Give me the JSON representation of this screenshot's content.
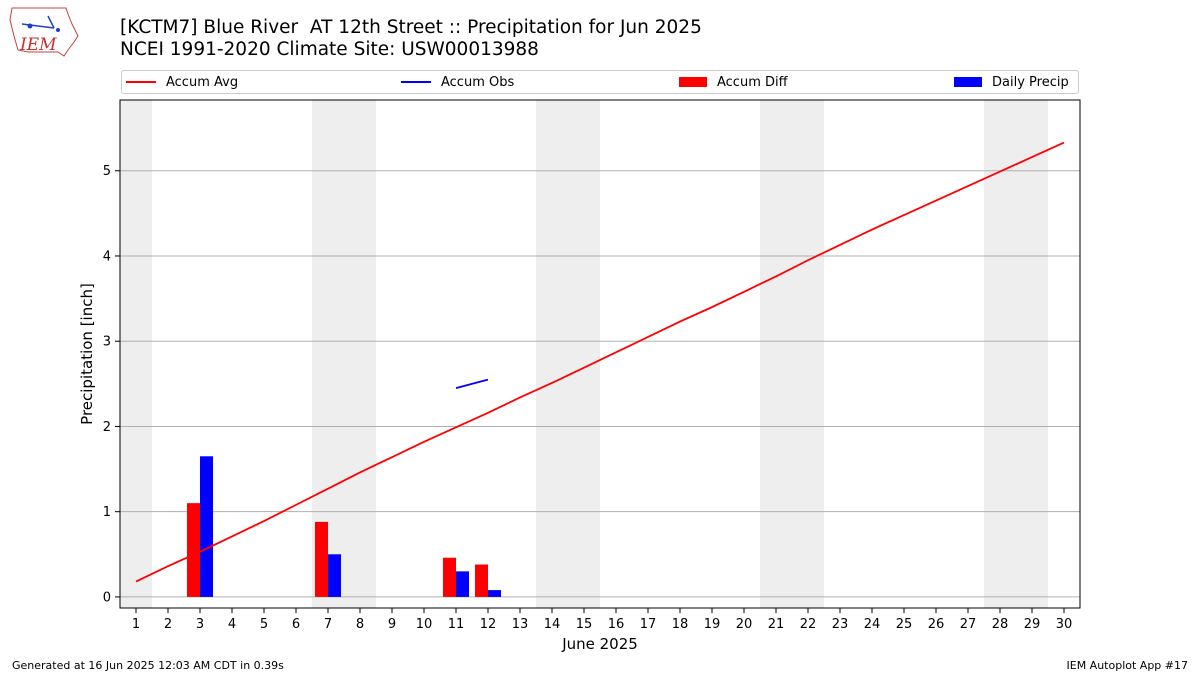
{
  "header": {
    "logo_text": "IEM",
    "title": "[KCTM7] Blue River  AT 12th Street :: Precipitation for Jun 2025",
    "subtitle": "NCEI 1991-2020 Climate Site: USW00013988"
  },
  "legend": {
    "items": [
      {
        "label": "Accum Avg",
        "kind": "line",
        "color": "#ff0000"
      },
      {
        "label": "Accum Obs",
        "kind": "line",
        "color": "#0000ff"
      },
      {
        "label": "Accum Diff",
        "kind": "box",
        "color": "#ff0000"
      },
      {
        "label": "Daily Precip",
        "kind": "box",
        "color": "#0000ff"
      }
    ]
  },
  "footer": {
    "left": "Generated at 16 Jun 2025 12:03 AM CDT in 0.39s",
    "right": "IEM Autoplot App #17"
  },
  "chart_data": {
    "type": "bar",
    "xlabel": "June 2025",
    "ylabel": "Precipitation [inch]",
    "x": [
      1,
      2,
      3,
      4,
      5,
      6,
      7,
      8,
      9,
      10,
      11,
      12,
      13,
      14,
      15,
      16,
      17,
      18,
      19,
      20,
      21,
      22,
      23,
      24,
      25,
      26,
      27,
      28,
      29,
      30
    ],
    "xlim": [
      0.5,
      30.5
    ],
    "ylim": [
      -0.13,
      5.83
    ],
    "yticks": [
      0,
      1,
      2,
      3,
      4,
      5
    ],
    "grid": "horizontal",
    "weekend_shading": [
      [
        0.5,
        1.5
      ],
      [
        6.5,
        8.5
      ],
      [
        13.5,
        15.5
      ],
      [
        20.5,
        22.5
      ],
      [
        27.5,
        29.5
      ]
    ],
    "weekend_color": "#eeeeee",
    "series": [
      {
        "name": "Accum Avg",
        "type": "line",
        "color": "#ff0000",
        "x": [
          1,
          2,
          3,
          4,
          5,
          6,
          7,
          8,
          9,
          10,
          11,
          12,
          13,
          14,
          15,
          16,
          17,
          18,
          19,
          20,
          21,
          22,
          23,
          24,
          25,
          26,
          27,
          28,
          29,
          30
        ],
        "values": [
          0.18,
          0.36,
          0.53,
          0.71,
          0.89,
          1.08,
          1.27,
          1.46,
          1.64,
          1.82,
          1.99,
          2.16,
          2.34,
          2.51,
          2.69,
          2.87,
          3.05,
          3.23,
          3.4,
          3.58,
          3.76,
          3.95,
          4.13,
          4.31,
          4.48,
          4.65,
          4.82,
          4.99,
          5.16,
          5.33
        ]
      },
      {
        "name": "Accum Obs",
        "type": "line",
        "color": "#0000ff",
        "x": [
          11,
          12
        ],
        "values": [
          2.45,
          2.55
        ]
      },
      {
        "name": "Accum Diff",
        "type": "bar",
        "color": "#ff0000",
        "x": [
          3,
          7,
          11,
          12
        ],
        "values": [
          1.1,
          0.88,
          0.46,
          0.38
        ]
      },
      {
        "name": "Daily Precip",
        "type": "bar",
        "color": "#0000ff",
        "x": [
          3,
          7,
          11,
          12
        ],
        "values": [
          1.65,
          0.5,
          0.3,
          0.08
        ]
      }
    ]
  }
}
